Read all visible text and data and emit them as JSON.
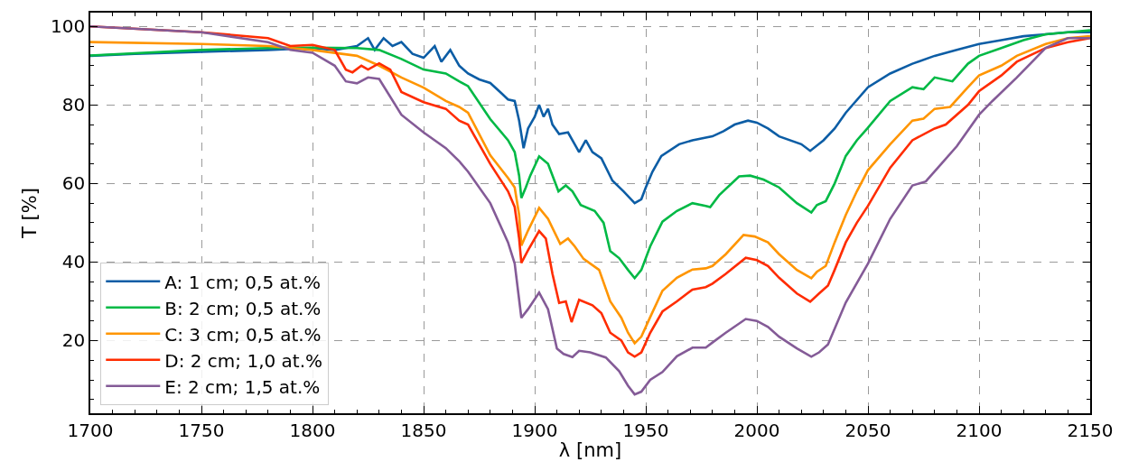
{
  "chart_data": {
    "type": "line",
    "xlabel": "λ [nm]",
    "ylabel": "T [%]",
    "xlim": [
      1700,
      2150
    ],
    "xticks": [
      1700,
      1750,
      1800,
      1850,
      1900,
      1950,
      2000,
      2050,
      2100,
      2150
    ],
    "ylim": [
      1.5,
      103.5
    ],
    "yticks": [
      20,
      40,
      60,
      80,
      100
    ],
    "grid": true,
    "legend": "bottom left",
    "marker": "none",
    "line_style": "solid",
    "series": [
      {
        "name": "A: 1 cm; 0,5 at.%",
        "color": "#0c5da5",
        "x": [
          1700,
          1720,
          1750,
          1780,
          1800,
          1810,
          1820,
          1825,
          1828,
          1832,
          1836,
          1840,
          1845,
          1850,
          1855,
          1858,
          1862,
          1866,
          1870,
          1875,
          1880,
          1885,
          1888,
          1891,
          1893,
          1895,
          1897,
          1900,
          1902,
          1904,
          1906,
          1908,
          1911,
          1915,
          1918,
          1920,
          1923,
          1926,
          1930,
          1935,
          1940,
          1945,
          1948,
          1950,
          1953,
          1957,
          1965,
          1971,
          1980,
          1985,
          1990,
          1996,
          2000,
          2005,
          2010,
          2020,
          2024,
          2030,
          2035,
          2040,
          2050,
          2060,
          2070,
          2080,
          2090,
          2100,
          2110,
          2120,
          2130,
          2140,
          2150
        ],
        "values": [
          92.5,
          93,
          93.5,
          94,
          94.5,
          94,
          95,
          97,
          94,
          97,
          95,
          96,
          93,
          92,
          95,
          91,
          94,
          90,
          88,
          86.5,
          85.6,
          83,
          81.4,
          81,
          76,
          69,
          74,
          77,
          80,
          77,
          79,
          75,
          72.6,
          73,
          70,
          68,
          71,
          68,
          66.4,
          60.7,
          58,
          55,
          56,
          59,
          63,
          67,
          70,
          71,
          72,
          73.3,
          75,
          76,
          75.5,
          74,
          72,
          70,
          68.3,
          71,
          74,
          78,
          84.5,
          88,
          90.5,
          92.5,
          94,
          95.5,
          96.5,
          97.5,
          98,
          98.5,
          98.5
        ]
      },
      {
        "name": "B: 2 cm; 0,5 at.%",
        "color": "#00b945",
        "x": [
          1700,
          1750,
          1780,
          1800,
          1820,
          1830,
          1840,
          1850,
          1860,
          1866,
          1870,
          1880,
          1888,
          1891,
          1893,
          1894,
          1896,
          1898,
          1902,
          1906,
          1910.7,
          1914,
          1917,
          1920.7,
          1927,
          1931,
          1934,
          1938,
          1942,
          1945,
          1948,
          1952,
          1957.5,
          1964,
          1971,
          1977,
          1979,
          1983,
          1992,
          1997,
          2003,
          2010,
          2018,
          2024.5,
          2027,
          2031,
          2035,
          2040,
          2045,
          2049.7,
          2060,
          2070,
          2075,
          2080,
          2088,
          2095,
          2100,
          2110,
          2120,
          2130,
          2140,
          2150
        ],
        "values": [
          92.6,
          94,
          94.5,
          94.6,
          94.5,
          94,
          91.7,
          89,
          88,
          86,
          84.8,
          76.4,
          71,
          68,
          62,
          56.3,
          59,
          62,
          66.9,
          65,
          58,
          59.5,
          58,
          54.5,
          53,
          50,
          42.8,
          41,
          38,
          35.9,
          38,
          44,
          50.3,
          53,
          55,
          54.3,
          54,
          57,
          61.8,
          62,
          61,
          59,
          55,
          52.6,
          54.5,
          55.5,
          60,
          67,
          71,
          74,
          81,
          84.5,
          84,
          87,
          86,
          90.5,
          92.5,
          94.5,
          96.5,
          98,
          98.5,
          99
        ]
      },
      {
        "name": "C: 3 cm; 0,5 at.%",
        "color": "#ff9500",
        "x": [
          1700,
          1750,
          1780,
          1800,
          1820,
          1830,
          1840,
          1850,
          1860,
          1866,
          1870,
          1880,
          1888,
          1891,
          1893,
          1894,
          1897,
          1902,
          1906,
          1911.5,
          1915,
          1918,
          1922,
          1929,
          1934,
          1939,
          1942,
          1945,
          1948,
          1952,
          1957.5,
          1964,
          1971,
          1977,
          1980,
          1986,
          1994,
          1999,
          2005,
          2010,
          2018,
          2024.5,
          2027,
          2031,
          2035,
          2040,
          2045,
          2050,
          2060,
          2070,
          2075,
          2080,
          2087,
          2095,
          2100,
          2110,
          2117,
          2130,
          2140,
          2150
        ],
        "values": [
          96,
          95.5,
          95,
          94,
          92.5,
          90,
          87,
          84.4,
          81,
          79.5,
          78,
          67.2,
          61.4,
          59,
          52,
          44.2,
          48,
          53.8,
          51,
          44.6,
          46,
          44,
          40.8,
          38,
          30,
          25.8,
          22,
          19.3,
          21,
          26,
          32.7,
          36,
          38.1,
          38.4,
          39,
          42,
          46.9,
          46.5,
          45,
          42,
          38,
          35.9,
          37.5,
          39,
          45,
          52,
          58,
          63.4,
          70,
          76,
          76.5,
          79,
          79.5,
          84.5,
          87.5,
          90,
          92.5,
          95.5,
          97,
          97.5
        ]
      },
      {
        "name": "D: 2 cm; 1,0 at.%",
        "color": "#ff2c00",
        "x": [
          1700,
          1750,
          1780,
          1790,
          1800,
          1810,
          1815,
          1818,
          1822,
          1825,
          1830,
          1835,
          1840,
          1850,
          1860,
          1866,
          1870,
          1880,
          1888,
          1891,
          1893,
          1894,
          1897,
          1902,
          1905,
          1908,
          1911,
          1914,
          1916.6,
          1920,
          1926,
          1930,
          1934,
          1939,
          1942,
          1945,
          1948,
          1952,
          1957.5,
          1964,
          1971,
          1977,
          1980,
          1986,
          1995,
          2000,
          2005,
          2010,
          2018,
          2024,
          2028,
          2032,
          2035,
          2040,
          2045,
          2050,
          2060,
          2070,
          2080,
          2085,
          2095,
          2100,
          2110,
          2117,
          2130,
          2140,
          2150
        ],
        "values": [
          100,
          98.5,
          97,
          95,
          95.3,
          94,
          89,
          88.3,
          90,
          89,
          90.6,
          89,
          83.3,
          80.7,
          79,
          76,
          75,
          65,
          58,
          54,
          46,
          39.8,
          43,
          47.9,
          46,
          37,
          29.6,
          30,
          24.7,
          30.4,
          29,
          27,
          22,
          20,
          17,
          15.9,
          17,
          22,
          27.4,
          30,
          33,
          33.6,
          34.5,
          37,
          41.1,
          40.5,
          39,
          36,
          32,
          29.9,
          32,
          34,
          38,
          45,
          50,
          54.3,
          64,
          71,
          74,
          75,
          80,
          83.5,
          87.5,
          91,
          94.5,
          96,
          97
        ]
      },
      {
        "name": "E: 2 cm; 1,5 at.%",
        "color": "#845b97",
        "x": [
          1700,
          1750,
          1780,
          1790,
          1800,
          1810,
          1815,
          1820,
          1825,
          1830,
          1840,
          1850,
          1855,
          1860,
          1866,
          1870,
          1880,
          1888,
          1891,
          1894,
          1897,
          1902,
          1906,
          1910,
          1913,
          1917,
          1920,
          1925,
          1932,
          1938,
          1942,
          1945,
          1948,
          1952,
          1957.5,
          1964,
          1971,
          1977,
          1980,
          1986,
          1995,
          2000,
          2005,
          2010,
          2018,
          2024.5,
          2028,
          2032,
          2040,
          2050,
          2060,
          2070,
          2076,
          2083,
          2090,
          2100,
          2106,
          2117,
          2130,
          2140,
          2150
        ],
        "values": [
          100,
          98.5,
          96,
          94,
          93.3,
          90,
          86,
          85.5,
          87,
          86.6,
          77.5,
          73,
          71,
          69,
          65.7,
          63,
          55,
          45,
          39.6,
          25.8,
          28,
          32.2,
          28,
          18,
          16.6,
          15.8,
          17.4,
          17,
          15.7,
          12.2,
          8.5,
          6.3,
          7,
          10,
          12,
          16,
          18.2,
          18.2,
          19.5,
          22,
          25.5,
          25,
          23.5,
          21,
          18,
          15.9,
          17,
          19,
          29.7,
          39.6,
          51,
          59.5,
          60.5,
          65,
          69.5,
          77.5,
          81,
          87,
          94.5,
          97,
          97
        ]
      }
    ]
  }
}
